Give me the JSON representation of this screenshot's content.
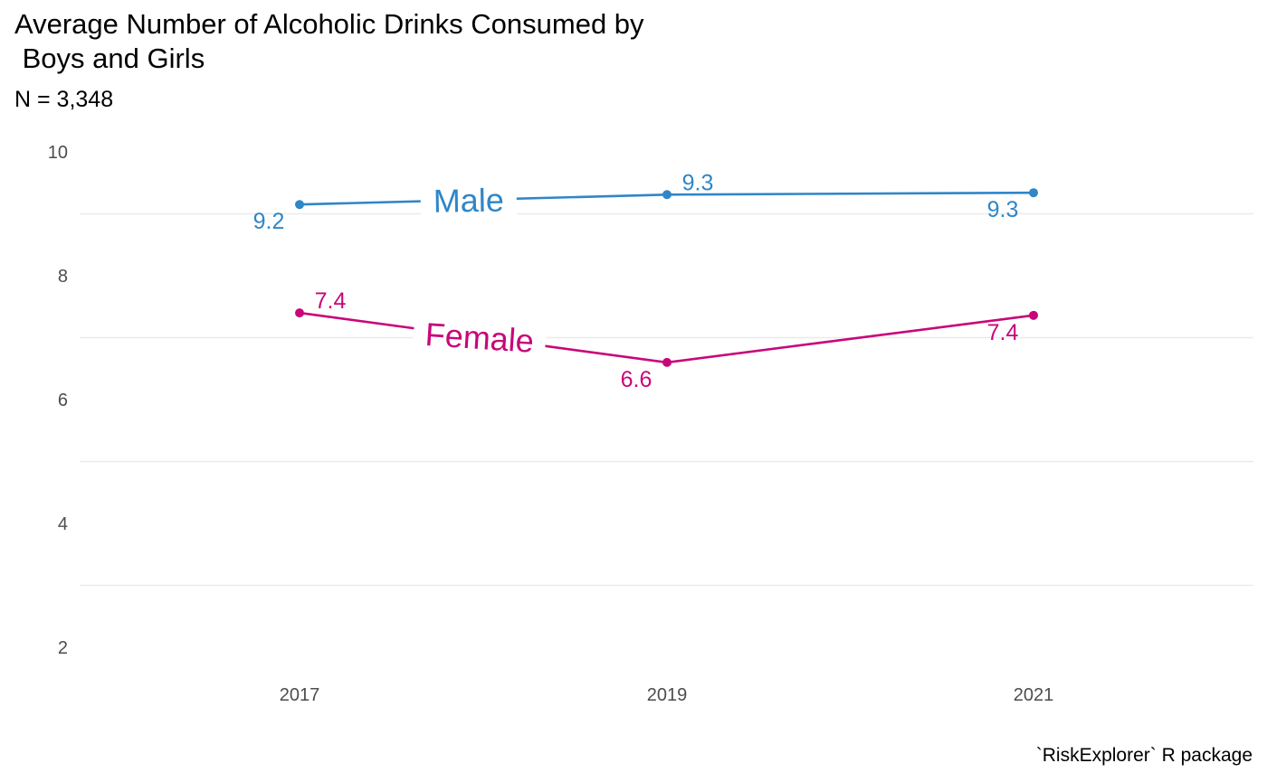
{
  "chart_data": {
    "type": "line",
    "title": "Average Number of Alcoholic Drinks Consumed by\n Boys and Girls",
    "subtitle": "N = 3,348",
    "caption": "`RiskExplorer` R package",
    "x": [
      "2017",
      "2019",
      "2021"
    ],
    "y_ticks": [
      "2",
      "4",
      "6",
      "8",
      "10"
    ],
    "ylim": [
      2,
      10
    ],
    "grid": "horizontal",
    "series": [
      {
        "name": "Male",
        "color": "#2f86c8",
        "values": [
          9.15,
          9.31,
          9.34
        ],
        "labels": [
          "9.2",
          "9.3",
          "9.3"
        ]
      },
      {
        "name": "Female",
        "color": "#c8067a",
        "values": [
          7.4,
          6.6,
          7.36
        ],
        "labels": [
          "7.4",
          "6.6",
          "7.4"
        ]
      }
    ]
  }
}
